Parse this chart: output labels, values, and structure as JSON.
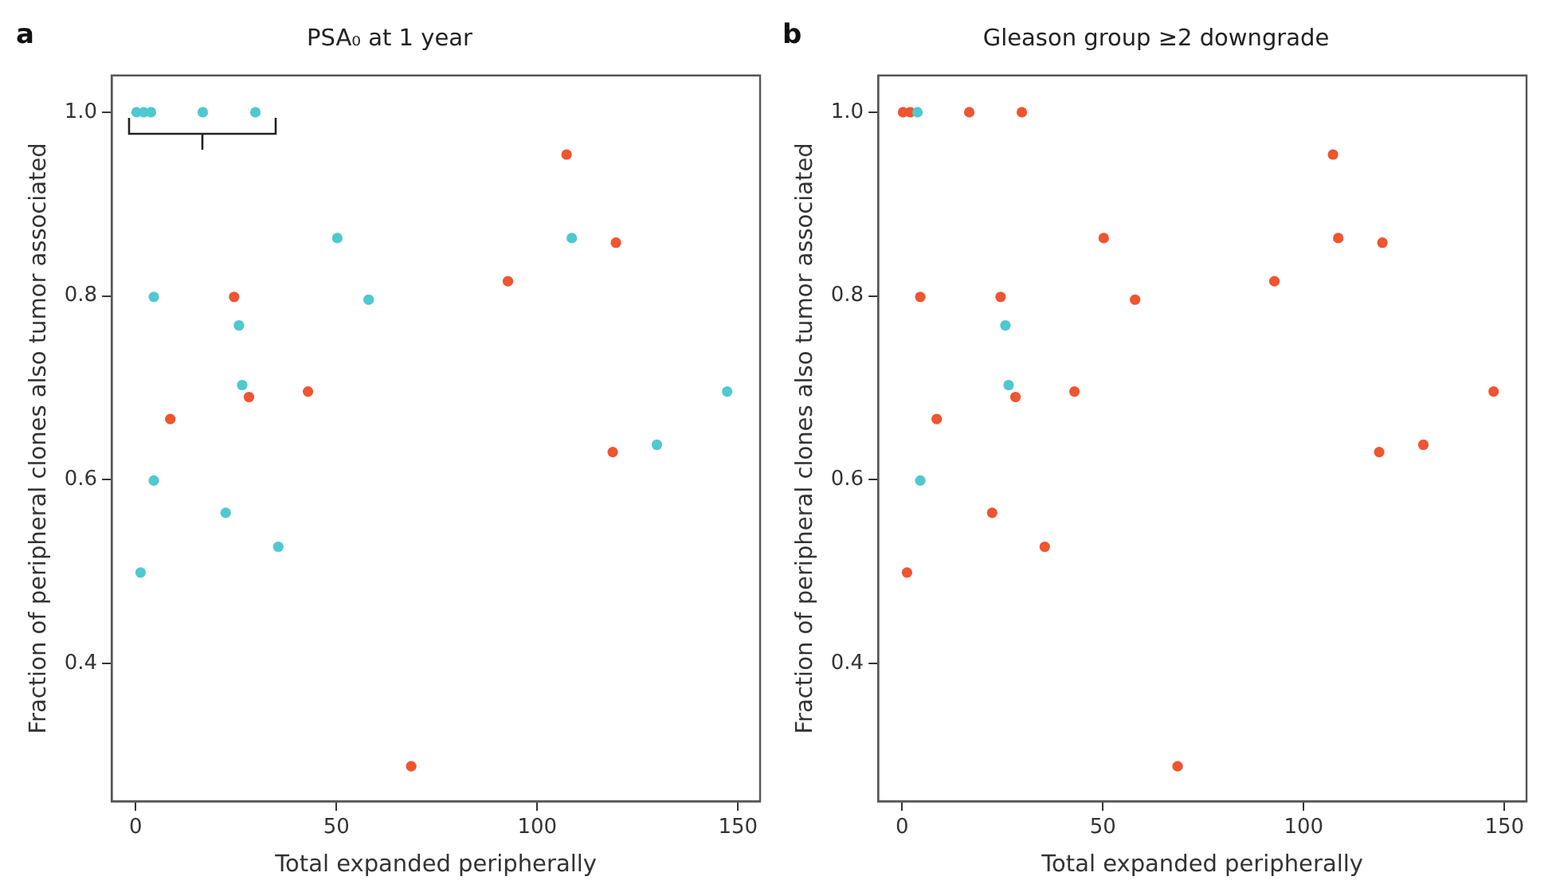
{
  "chart_data": [
    {
      "type": "scatter",
      "title": "PSA₀ at 1 year",
      "xlabel": "Total expanded peripherally",
      "ylabel": "Fraction of peripheral clones also tumor associated",
      "annotations": [
        "a"
      ],
      "marker": "circle",
      "grid": false,
      "legend": false,
      "xlim": [
        -6,
        155.5
      ],
      "xticks": [
        0,
        50,
        100,
        150
      ],
      "ylim": [
        0.25,
        1.04
      ],
      "yticks": [
        0.4,
        0.6,
        0.8,
        {
          "value": 1,
          "label": "1.0"
        }
      ],
      "series": [
        {
          "color": "#4fc8d0",
          "x": [
            0.2,
            2.0,
            3.8,
            16.7,
            29.8,
            50.2,
            4.5,
            25.7,
            58,
            108.6,
            26.5,
            4.5,
            22.4,
            1.2,
            35.5,
            129.8,
            147.3
          ],
          "values": [
            1,
            1,
            1,
            1,
            1,
            0.863,
            0.799,
            0.768,
            0.796,
            0.863,
            0.703,
            0.599,
            0.564,
            0.499,
            0.527,
            0.638,
            0.696
          ]
        },
        {
          "color": "#ee5530",
          "x": [
            107.3,
            119.6,
            92.7,
            24.5,
            28.2,
            42.9,
            8.6,
            118.8,
            68.6
          ],
          "values": [
            0.954,
            0.858,
            0.816,
            0.799,
            0.69,
            0.696,
            0.666,
            0.63,
            0.288
          ]
        }
      ]
    },
    {
      "type": "scatter",
      "title": "Gleason group ≥2 downgrade",
      "xlabel": "Total expanded peripherally",
      "ylabel": "Fraction of peripheral clones also tumor associated",
      "annotations": [
        "b"
      ],
      "marker": "circle",
      "grid": false,
      "legend": false,
      "xlim": [
        -6,
        155.5
      ],
      "xticks": [
        0,
        50,
        100,
        150
      ],
      "ylim": [
        0.25,
        1.04
      ],
      "yticks": [
        0.4,
        0.6,
        0.8,
        {
          "value": 1,
          "label": "1.0"
        }
      ],
      "series": [
        {
          "color": "#4fc8d0",
          "x": [
            3.8,
            25.7,
            26.5,
            4.5
          ],
          "values": [
            1,
            0.768,
            0.703,
            0.599
          ]
        },
        {
          "color": "#ee5530",
          "x": [
            0.2,
            2.0,
            16.7,
            29.8,
            50.2,
            4.5,
            58,
            108.6,
            22.4,
            1.2,
            35.5,
            129.8,
            147.3,
            107.3,
            119.6,
            92.7,
            24.5,
            28.2,
            42.9,
            8.6,
            118.8,
            68.6
          ],
          "values": [
            1,
            1,
            1,
            1,
            0.863,
            0.799,
            0.796,
            0.863,
            0.564,
            0.499,
            0.527,
            0.638,
            0.696,
            0.954,
            0.858,
            0.816,
            0.799,
            0.69,
            0.696,
            0.666,
            0.63,
            0.288
          ]
        }
      ]
    }
  ]
}
